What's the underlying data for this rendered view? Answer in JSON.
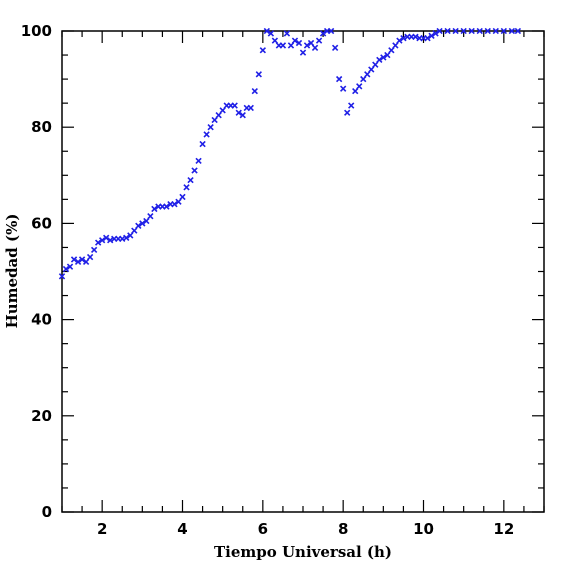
{
  "chart_data": {
    "type": "scatter",
    "xlabel": "Tiempo Universal (h)",
    "ylabel": "Humedad (%)",
    "xlim": [
      1.0,
      13.0
    ],
    "ylim": [
      0,
      100
    ],
    "x_ticks": [
      2,
      4,
      6,
      8,
      10,
      12
    ],
    "x_tick_labels": [
      "2",
      "4",
      "6",
      "8",
      "10",
      "12"
    ],
    "y_ticks": [
      0,
      20,
      40,
      60,
      80,
      100
    ],
    "y_tick_labels": [
      "0",
      "20",
      "40",
      "60",
      "80",
      "100"
    ],
    "x_minor_step": 0.5,
    "y_minor_step": 5,
    "grid": false,
    "marker": "x",
    "marker_color": "#1f1fe6",
    "series": [
      {
        "points": [
          [
            1.0,
            49.0
          ],
          [
            1.1,
            50.5
          ],
          [
            1.2,
            51.0
          ],
          [
            1.3,
            52.5
          ],
          [
            1.4,
            52.0
          ],
          [
            1.5,
            52.5
          ],
          [
            1.6,
            52.0
          ],
          [
            1.7,
            53.0
          ],
          [
            1.8,
            54.5
          ],
          [
            1.9,
            56.0
          ],
          [
            2.0,
            56.5
          ],
          [
            2.1,
            57.0
          ],
          [
            2.2,
            56.5
          ],
          [
            2.3,
            56.8
          ],
          [
            2.4,
            56.8
          ],
          [
            2.5,
            56.8
          ],
          [
            2.6,
            57.0
          ],
          [
            2.7,
            57.5
          ],
          [
            2.8,
            58.5
          ],
          [
            2.9,
            59.5
          ],
          [
            3.0,
            60.0
          ],
          [
            3.1,
            60.5
          ],
          [
            3.2,
            61.5
          ],
          [
            3.3,
            63.0
          ],
          [
            3.4,
            63.5
          ],
          [
            3.5,
            63.5
          ],
          [
            3.6,
            63.5
          ],
          [
            3.7,
            64.0
          ],
          [
            3.8,
            64.0
          ],
          [
            3.9,
            64.5
          ],
          [
            4.0,
            65.5
          ],
          [
            4.1,
            67.5
          ],
          [
            4.2,
            69.0
          ],
          [
            4.3,
            71.0
          ],
          [
            4.4,
            73.0
          ],
          [
            4.5,
            76.5
          ],
          [
            4.6,
            78.5
          ],
          [
            4.7,
            80.0
          ],
          [
            4.8,
            81.5
          ],
          [
            4.9,
            82.5
          ],
          [
            5.0,
            83.5
          ],
          [
            5.1,
            84.5
          ],
          [
            5.2,
            84.5
          ],
          [
            5.3,
            84.5
          ],
          [
            5.4,
            83.0
          ],
          [
            5.5,
            82.5
          ],
          [
            5.6,
            84.0
          ],
          [
            5.7,
            84.0
          ],
          [
            5.8,
            87.5
          ],
          [
            5.9,
            91.0
          ],
          [
            6.0,
            96.0
          ],
          [
            6.1,
            100.0
          ],
          [
            6.2,
            99.5
          ],
          [
            6.3,
            98.0
          ],
          [
            6.4,
            97.0
          ],
          [
            6.5,
            97.0
          ],
          [
            6.6,
            99.5
          ],
          [
            6.7,
            97.0
          ],
          [
            6.8,
            98.0
          ],
          [
            6.9,
            97.5
          ],
          [
            7.0,
            95.5
          ],
          [
            7.1,
            97.0
          ],
          [
            7.2,
            97.5
          ],
          [
            7.3,
            96.5
          ],
          [
            7.4,
            98.0
          ],
          [
            7.5,
            99.5
          ],
          [
            7.6,
            100.0
          ],
          [
            7.7,
            100.0
          ],
          [
            7.8,
            96.5
          ],
          [
            7.9,
            90.0
          ],
          [
            8.0,
            88.0
          ],
          [
            8.1,
            83.0
          ],
          [
            8.2,
            84.5
          ],
          [
            8.3,
            87.5
          ],
          [
            8.4,
            88.5
          ],
          [
            8.5,
            90.0
          ],
          [
            8.6,
            91.0
          ],
          [
            8.7,
            92.0
          ],
          [
            8.8,
            93.0
          ],
          [
            8.9,
            94.0
          ],
          [
            9.0,
            94.5
          ],
          [
            9.1,
            95.0
          ],
          [
            9.2,
            96.0
          ],
          [
            9.3,
            97.0
          ],
          [
            9.4,
            98.0
          ],
          [
            9.5,
            98.5
          ],
          [
            9.6,
            98.8
          ],
          [
            9.7,
            98.8
          ],
          [
            9.8,
            98.8
          ],
          [
            9.9,
            98.5
          ],
          [
            10.0,
            98.5
          ],
          [
            10.1,
            98.5
          ],
          [
            10.2,
            99.0
          ],
          [
            10.3,
            99.5
          ],
          [
            10.4,
            100.0
          ],
          [
            10.6,
            100.0
          ],
          [
            10.8,
            100.0
          ],
          [
            11.0,
            100.0
          ],
          [
            11.2,
            100.0
          ],
          [
            11.4,
            100.0
          ],
          [
            11.6,
            100.0
          ],
          [
            11.8,
            100.0
          ],
          [
            12.0,
            100.0
          ],
          [
            12.2,
            100.0
          ],
          [
            12.35,
            100.0
          ]
        ]
      }
    ]
  }
}
